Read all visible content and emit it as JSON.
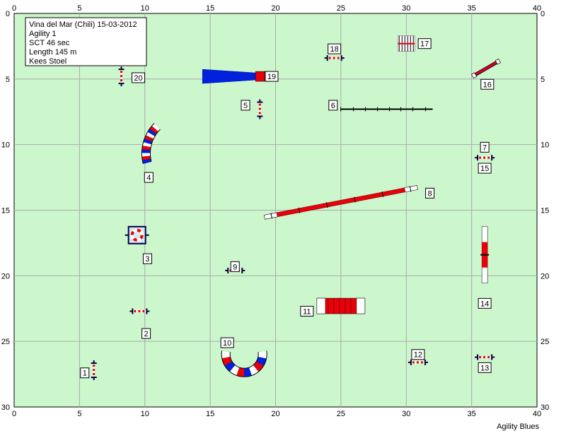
{
  "info": {
    "lines": [
      "Vina del Mar (Chili) 15-03-2012",
      "Agility 1",
      "SCT 46 sec",
      "Length 145 m",
      "Kees Stoel"
    ]
  },
  "footer": "Agility Blues",
  "colors": {
    "field": "#ccf7cc",
    "grid": "#aaaaaa",
    "red": "#e8000b",
    "blue": "#0022dd",
    "dark": "#000044"
  },
  "axes": {
    "x_ticks": [
      0,
      5,
      10,
      15,
      20,
      25,
      30,
      35,
      40
    ],
    "y_ticks": [
      0,
      5,
      10,
      15,
      20,
      25,
      30
    ],
    "x_range": [
      0,
      40
    ],
    "y_range": [
      0,
      30
    ]
  },
  "obstacles": [
    {
      "n": "1",
      "type": "jump",
      "x": 6.1,
      "y": 27.2,
      "angle": 90,
      "lx": 5.4,
      "ly": 27.4
    },
    {
      "n": "2",
      "type": "jump",
      "x": 9.6,
      "y": 22.7,
      "angle": 0,
      "lx": 10.1,
      "ly": 24.4
    },
    {
      "n": "3",
      "type": "tire",
      "x": 9.4,
      "y": 16.9,
      "angle": 0,
      "lx": 10.2,
      "ly": 18.7
    },
    {
      "n": "4",
      "type": "curved-tunnel",
      "x": 10.2,
      "y": 9.8,
      "lx": 10.3,
      "ly": 12.5
    },
    {
      "n": "5",
      "type": "jump",
      "x": 18.8,
      "y": 7.3,
      "angle": 90,
      "lx": 17.7,
      "ly": 7.0
    },
    {
      "n": "6",
      "type": "dogwalk",
      "x": 28.5,
      "y": 7.3,
      "angle": 0,
      "lx": 24.4,
      "ly": 7.0
    },
    {
      "n": "7",
      "type": "jump",
      "x": 36.0,
      "y": 11.0,
      "angle": 0,
      "lx": 36.0,
      "ly": 10.2
    },
    {
      "n": "8",
      "type": "dogwalk-ramp",
      "x": 25.0,
      "y": 14.4,
      "angle": -11,
      "lx": 31.8,
      "ly": 13.7
    },
    {
      "n": "9",
      "type": "jump",
      "x": 16.9,
      "y": 19.6,
      "angle": 0,
      "lx": 16.9,
      "ly": 19.3
    },
    {
      "n": "10",
      "type": "u-tunnel",
      "x": 17.6,
      "y": 26.3,
      "lx": 16.3,
      "ly": 25.1
    },
    {
      "n": "11",
      "type": "tunnel",
      "x": 25.0,
      "y": 22.3,
      "angle": 0,
      "lx": 22.4,
      "ly": 22.7
    },
    {
      "n": "12",
      "type": "jump",
      "x": 30.9,
      "y": 26.6,
      "angle": 0,
      "lx": 30.9,
      "ly": 26.0
    },
    {
      "n": "13",
      "type": "jump",
      "x": 36.0,
      "y": 26.2,
      "angle": 0,
      "lx": 36.0,
      "ly": 27.0
    },
    {
      "n": "14",
      "type": "aframe",
      "x": 36.0,
      "y": 18.4,
      "angle": 90,
      "lx": 36.0,
      "ly": 22.1
    },
    {
      "n": "15",
      "type": "label-only",
      "lx": 36.0,
      "ly": 11.8
    },
    {
      "n": "16",
      "type": "slant",
      "x": 36.1,
      "y": 4.2,
      "angle": -30,
      "lx": 36.2,
      "ly": 5.4
    },
    {
      "n": "17",
      "type": "weave",
      "x": 30.0,
      "y": 2.3,
      "angle": 0,
      "lx": 31.4,
      "ly": 2.3
    },
    {
      "n": "18",
      "type": "jump",
      "x": 24.5,
      "y": 3.4,
      "angle": 0,
      "lx": 24.5,
      "ly": 2.7
    },
    {
      "n": "19",
      "type": "chute",
      "x": 16.3,
      "y": 4.8,
      "angle": 0,
      "lx": 19.7,
      "ly": 4.8
    },
    {
      "n": "20",
      "type": "jump",
      "x": 8.2,
      "y": 4.8,
      "angle": 90,
      "lx": 9.5,
      "ly": 4.9
    }
  ]
}
